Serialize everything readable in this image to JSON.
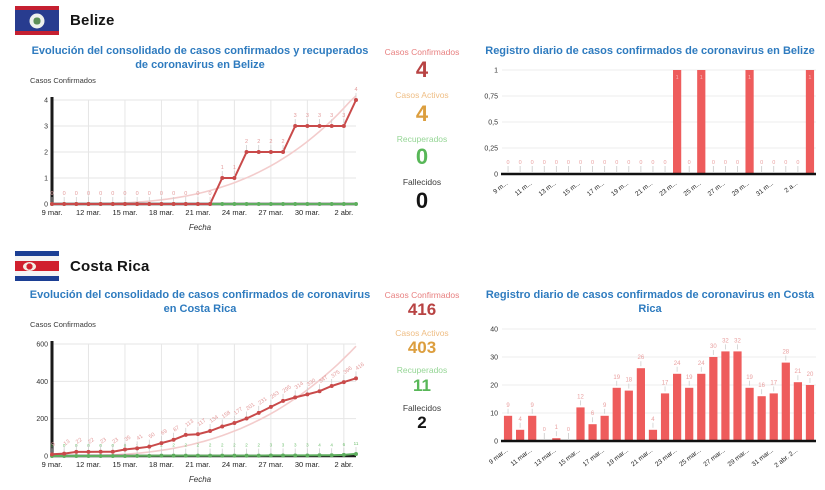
{
  "colors": {
    "title_blue": "#2e7bbf",
    "series_red": "#c94a4a",
    "point_label_pink": "#e39a9a",
    "trend_pink": "#f3cccc",
    "series_green": "#5fae5f",
    "green_label": "#6fbf6f",
    "bar_red": "#ee5c5c",
    "bar_label_pink": "#e9a0a0",
    "axis_dark": "#1a1a1a",
    "grid_gray": "#e6e6e6"
  },
  "sections": [
    {
      "country": "Belize",
      "flag": "belize-flag",
      "stats": [
        {
          "label": "Casos Confirmados",
          "value": "4",
          "label_color": "#e88080",
          "value_color": "#b84343"
        },
        {
          "label": "Casos Activos",
          "value": "4",
          "label_color": "#efbe85",
          "value_color": "#dc9e3e"
        },
        {
          "label": "Recuperados",
          "value": "0",
          "label_color": "#96d696",
          "value_color": "#58b758"
        },
        {
          "label": "Fallecidos",
          "value": "0",
          "label_color": "#3c3c3c",
          "value_color": "#141414"
        }
      ]
    },
    {
      "country": "Costa Rica",
      "flag": "costa-rica-flag",
      "stats": [
        {
          "label": "Casos Confirmados",
          "value": "416",
          "label_color": "#e88080",
          "value_color": "#b84343"
        },
        {
          "label": "Casos Activos",
          "value": "403",
          "label_color": "#efbe85",
          "value_color": "#dc9e3e"
        },
        {
          "label": "Recuperados",
          "value": "11",
          "label_color": "#96d696",
          "value_color": "#58b758"
        },
        {
          "label": "Fallecidos",
          "value": "2",
          "label_color": "#3c3c3c",
          "value_color": "#141414"
        }
      ]
    }
  ],
  "chart_data": [
    {
      "type": "line",
      "title": "Evolución del consolidado de casos confirmados y recuperados de coronavirus en Belize",
      "ylabel": "Casos Confirmados",
      "xlabel": "Fecha",
      "ylim": [
        0,
        4
      ],
      "yticks": [
        4,
        3,
        2,
        1,
        0
      ],
      "ytick_labels": [
        "4",
        "3",
        "2",
        "1",
        "0"
      ],
      "n_points": 26,
      "x_tick_step": 3,
      "x_tick_labels": [
        "9 mar.",
        "12 mar.",
        "15 mar.",
        "18 mar.",
        "21 mar.",
        "24 mar.",
        "27 mar.",
        "30 mar.",
        "2 abr."
      ],
      "grid": true,
      "legend": "none",
      "trend": {
        "color": "#f3cccc",
        "scale": 1.05,
        "power": 3.2
      },
      "series": [
        {
          "name": "Recuperados",
          "color": "#5fae5f",
          "show_labels": false,
          "values": [
            0,
            0,
            0,
            0,
            0,
            0,
            0,
            0,
            0,
            0,
            0,
            0,
            0,
            0,
            0,
            0,
            0,
            0,
            0,
            0,
            0,
            0,
            0,
            0,
            0,
            0
          ]
        },
        {
          "name": "Casos Confirmados",
          "color": "#c94a4a",
          "show_labels": true,
          "label_color": "#e39a9a",
          "label_size": 5.5,
          "label_rotate": 0,
          "values": [
            0,
            0,
            0,
            0,
            0,
            0,
            0,
            0,
            0,
            0,
            0,
            0,
            0,
            0,
            1,
            1,
            2,
            2,
            2,
            2,
            3,
            3,
            3,
            3,
            3,
            4
          ]
        }
      ]
    },
    {
      "type": "bar",
      "title": "Registro diario de casos confirmados de coronavirus en Belize",
      "ylim": [
        0,
        1
      ],
      "yticks": [
        1,
        0.75,
        0.5,
        0.25,
        0
      ],
      "ytick_labels": [
        "1",
        "0,75",
        "0,5",
        "0,25",
        "0"
      ],
      "n_points": 26,
      "x_tick_step": 2,
      "x_tick_labels": [
        "9 m...",
        "11 m...",
        "13 m...",
        "15 m...",
        "17 m...",
        "19 m...",
        "21 m...",
        "23 m...",
        "25 m...",
        "27 m...",
        "29 m...",
        "31 m...",
        "2 a..."
      ],
      "grid": true,
      "bar_color": "#ee5c5c",
      "label_color": "#e9a0a0",
      "values": [
        0,
        0,
        0,
        0,
        0,
        0,
        0,
        0,
        0,
        0,
        0,
        0,
        0,
        0,
        1,
        0,
        1,
        0,
        0,
        0,
        1,
        0,
        0,
        0,
        0,
        1
      ]
    },
    {
      "type": "line",
      "title": "Evolución del consolidado de casos confirmados de coronavirus en Costa Rica",
      "ylabel": "Casos Confirmados",
      "xlabel": "Fecha",
      "ylim": [
        0,
        600
      ],
      "yticks": [
        600,
        400,
        200,
        0
      ],
      "ytick_labels": [
        "600",
        "400",
        "200",
        "0"
      ],
      "n_points": 26,
      "x_tick_step": 3,
      "x_tick_labels": [
        "9 mar.",
        "12 mar.",
        "15 mar.",
        "18 mar.",
        "21 mar.",
        "24 mar.",
        "27 mar.",
        "30 mar.",
        "2 abr."
      ],
      "grid": true,
      "legend": "none",
      "trend": {
        "color": "#f3cccc",
        "scale": 0.98,
        "power": 2.9
      },
      "series": [
        {
          "name": "Recuperados",
          "color": "#5fae5f",
          "show_labels": true,
          "label_color": "#6fbf6f",
          "label_size": 4.5,
          "label_rotate": 0,
          "values": [
            0,
            0,
            0,
            0,
            0,
            0,
            0,
            1,
            1,
            2,
            2,
            2,
            2,
            2,
            2,
            2,
            2,
            2,
            3,
            3,
            3,
            3,
            4,
            4,
            6,
            11
          ]
        },
        {
          "name": "Casos Confirmados",
          "color": "#c94a4a",
          "show_labels": true,
          "label_color": "#e39a9a",
          "label_size": 5.5,
          "label_rotate": -35,
          "values": [
            9,
            13,
            22,
            22,
            23,
            23,
            35,
            41,
            50,
            69,
            87,
            113,
            117,
            134,
            158,
            177,
            201,
            231,
            263,
            295,
            314,
            330,
            347,
            375,
            396,
            416
          ]
        }
      ]
    },
    {
      "type": "bar",
      "title": "Registro diario de casos confirmados de coronavirus en Costa Rica",
      "ylim": [
        0,
        40
      ],
      "yticks": [
        40,
        30,
        20,
        10,
        0
      ],
      "ytick_labels": [
        "40",
        "30",
        "20",
        "10",
        "0"
      ],
      "n_points": 26,
      "x_tick_step": 2,
      "x_tick_labels": [
        "9 mar...",
        "11 mar...",
        "13 mar...",
        "15 mar...",
        "17 mar...",
        "19 mar...",
        "21 mar...",
        "23 mar...",
        "25 mar...",
        "27 mar...",
        "29 mar...",
        "31 mar...",
        "2 abr. 2..."
      ],
      "grid": true,
      "bar_color": "#ee5c5c",
      "label_color": "#e9a0a0",
      "values": [
        9,
        4,
        9,
        0,
        1,
        0,
        12,
        6,
        9,
        19,
        18,
        26,
        4,
        17,
        24,
        19,
        24,
        30,
        32,
        32,
        19,
        16,
        17,
        28,
        21,
        20
      ]
    }
  ]
}
